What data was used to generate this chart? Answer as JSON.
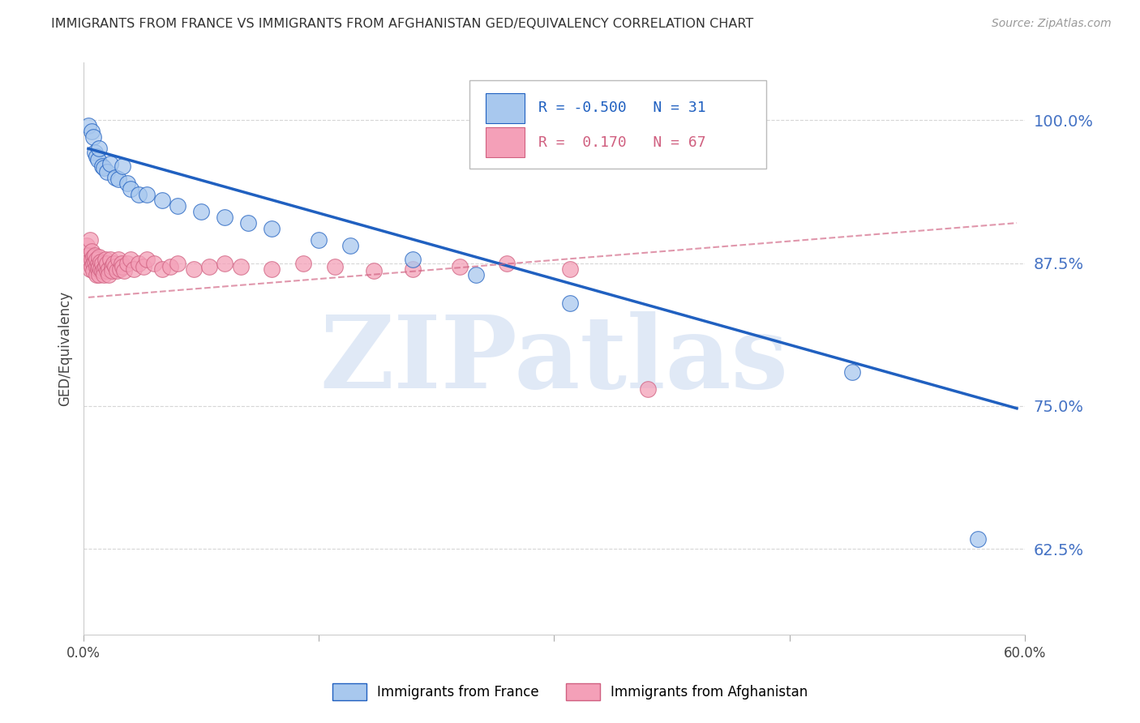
{
  "title": "IMMIGRANTS FROM FRANCE VS IMMIGRANTS FROM AFGHANISTAN GED/EQUIVALENCY CORRELATION CHART",
  "source": "Source: ZipAtlas.com",
  "ylabel": "GED/Equivalency",
  "ytick_labels": [
    "100.0%",
    "87.5%",
    "75.0%",
    "62.5%"
  ],
  "ytick_values": [
    1.0,
    0.875,
    0.75,
    0.625
  ],
  "xlim": [
    0.0,
    0.6
  ],
  "ylim": [
    0.55,
    1.05
  ],
  "france_R": -0.5,
  "france_N": 31,
  "afghanistan_R": 0.17,
  "afghanistan_N": 67,
  "france_color": "#A8C8EE",
  "afghanistan_color": "#F4A0B8",
  "france_line_color": "#2060C0",
  "afghanistan_line_color": "#D06080",
  "background_color": "#FFFFFF",
  "watermark": "ZIPatlas",
  "watermark_color": "#C8D8F0",
  "grid_color": "#CCCCCC",
  "france_line_x0": 0.003,
  "france_line_y0": 0.975,
  "france_line_x1": 0.595,
  "france_line_y1": 0.748,
  "afghanistan_line_x0": 0.003,
  "afghanistan_line_y0": 0.845,
  "afghanistan_line_x1": 0.595,
  "afghanistan_line_y1": 0.91,
  "france_scatter_x": [
    0.003,
    0.005,
    0.006,
    0.007,
    0.008,
    0.009,
    0.01,
    0.012,
    0.013,
    0.015,
    0.017,
    0.02,
    0.022,
    0.025,
    0.028,
    0.03,
    0.035,
    0.04,
    0.05,
    0.06,
    0.075,
    0.09,
    0.105,
    0.12,
    0.15,
    0.17,
    0.21,
    0.25,
    0.31,
    0.49,
    0.57
  ],
  "france_scatter_y": [
    0.995,
    0.99,
    0.985,
    0.972,
    0.968,
    0.965,
    0.975,
    0.96,
    0.958,
    0.955,
    0.962,
    0.95,
    0.948,
    0.96,
    0.945,
    0.94,
    0.935,
    0.935,
    0.93,
    0.925,
    0.92,
    0.915,
    0.91,
    0.905,
    0.895,
    0.89,
    0.878,
    0.865,
    0.84,
    0.78,
    0.634
  ],
  "afghanistan_scatter_x": [
    0.002,
    0.003,
    0.003,
    0.004,
    0.004,
    0.005,
    0.005,
    0.005,
    0.006,
    0.006,
    0.006,
    0.007,
    0.007,
    0.008,
    0.008,
    0.008,
    0.009,
    0.009,
    0.01,
    0.01,
    0.01,
    0.011,
    0.011,
    0.012,
    0.012,
    0.013,
    0.013,
    0.014,
    0.014,
    0.015,
    0.015,
    0.016,
    0.016,
    0.017,
    0.018,
    0.018,
    0.019,
    0.02,
    0.021,
    0.022,
    0.023,
    0.024,
    0.025,
    0.026,
    0.028,
    0.03,
    0.032,
    0.035,
    0.038,
    0.04,
    0.045,
    0.05,
    0.055,
    0.06,
    0.07,
    0.08,
    0.09,
    0.1,
    0.12,
    0.14,
    0.16,
    0.185,
    0.21,
    0.24,
    0.27,
    0.31,
    0.36
  ],
  "afghanistan_scatter_y": [
    0.89,
    0.882,
    0.876,
    0.895,
    0.87,
    0.878,
    0.885,
    0.872,
    0.88,
    0.875,
    0.868,
    0.876,
    0.882,
    0.872,
    0.878,
    0.865,
    0.875,
    0.87,
    0.88,
    0.872,
    0.865,
    0.876,
    0.87,
    0.868,
    0.875,
    0.87,
    0.865,
    0.872,
    0.878,
    0.868,
    0.875,
    0.87,
    0.865,
    0.878,
    0.872,
    0.868,
    0.875,
    0.872,
    0.868,
    0.878,
    0.87,
    0.875,
    0.872,
    0.868,
    0.875,
    0.878,
    0.87,
    0.875,
    0.872,
    0.878,
    0.875,
    0.87,
    0.872,
    0.875,
    0.87,
    0.872,
    0.875,
    0.872,
    0.87,
    0.875,
    0.872,
    0.868,
    0.87,
    0.872,
    0.875,
    0.87,
    0.765
  ]
}
